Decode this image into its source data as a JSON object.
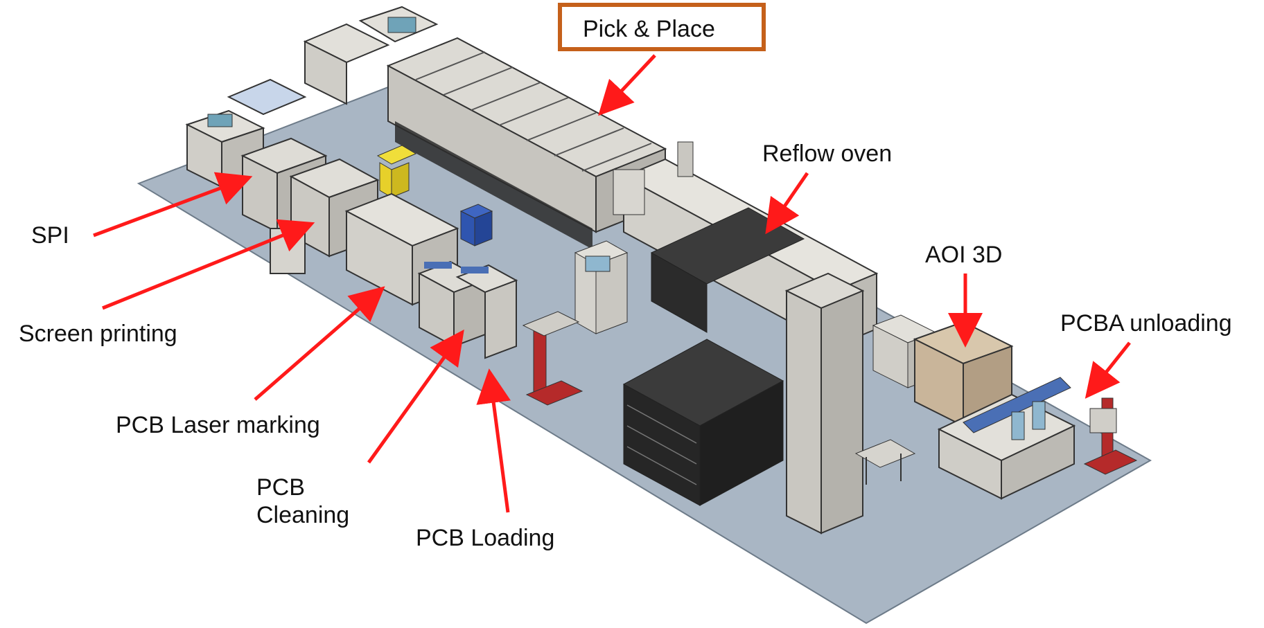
{
  "labels": {
    "pick_place": "Pick & Place",
    "reflow": "Reflow oven",
    "spi": "SPI",
    "screen_printing": "Screen printing",
    "laser_marking": "PCB Laser marking",
    "cleaning_line1": "PCB",
    "cleaning_line2": "Cleaning",
    "loading": "PCB Loading",
    "aoi": "AOI 3D",
    "unloading": "PCBA unloading"
  },
  "colors": {
    "floor": "#a9b6c4",
    "arrow": "#ff1a1a",
    "pick_box_border": "#c5601a",
    "machine_body": "#d9d9d6",
    "machine_dark": "#2b2b2b",
    "panel_blue": "#4a6fb5",
    "bin_yellow": "#e7d02a",
    "bin_blue": "#2f55b0",
    "cart_red": "#b52a2a",
    "aoi_tan": "#c9b59a"
  }
}
